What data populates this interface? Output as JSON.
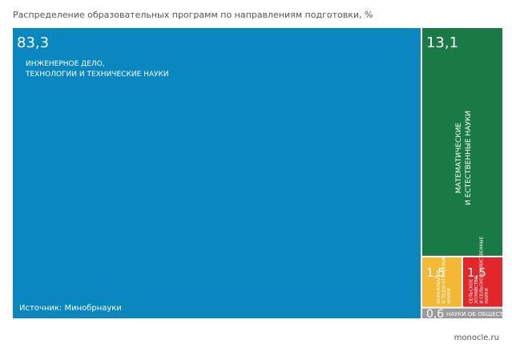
{
  "chart_data": {
    "type": "treemap",
    "title": "Распределение образовательных программ по направлениям подготовки, %",
    "categories": [
      [
        "ИНЖЕНЕРНОЕ ДЕЛО,",
        "ТЕХНОЛОГИИ И ТЕХНИЧЕСКИЕ НАУКИ"
      ],
      [
        "МАТЕМАТИЧЕСКИЕ",
        "И ЕСТЕСТВЕННЫЕ НАУКИ"
      ],
      [
        "ОБРАЗОВАНИЕ",
        "И ПЕДАГОГИЧЕСКИЕ",
        "НАУКИ"
      ],
      [
        "СЕЛЬСКОЕ",
        "ХОЗЯЙСТВО",
        "И СЕЛЬСКОХОЗЯЙСТВЕННЫЕ",
        "НАУКИ"
      ],
      [
        "НАУКИ ОБ ОБЩЕСТВЕ"
      ]
    ],
    "values": [
      83.3,
      13.1,
      1.5,
      1.5,
      0.6
    ],
    "value_labels": [
      "83,3",
      "13,1",
      "1,5",
      "1,5",
      "0,6"
    ],
    "colors": [
      "#0a87bf",
      "#1a7a45",
      "#f4b934",
      "#e2262a",
      "#9b9b9b"
    ],
    "source": "Источник: Минобрнауки",
    "credit": "monocle.ru"
  }
}
